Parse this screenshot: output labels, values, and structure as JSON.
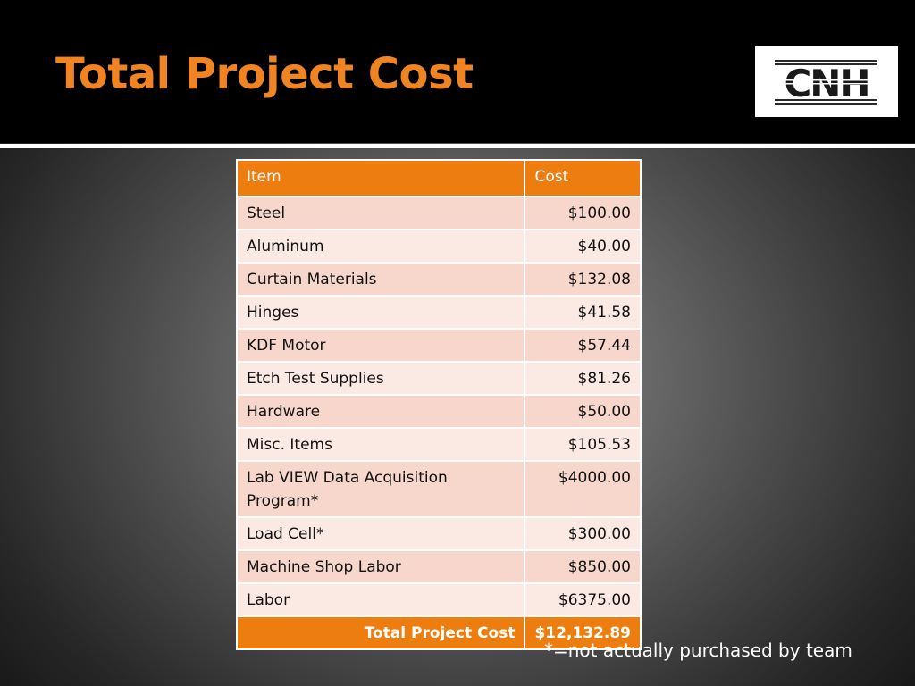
{
  "slide": {
    "title": "Total Project Cost",
    "logo_text": "CNH",
    "footnote": "*=not actually purchased by team"
  },
  "table": {
    "headers": [
      "Item",
      "Cost"
    ],
    "rows": [
      {
        "item": "Steel",
        "cost": "$100.00"
      },
      {
        "item": "Aluminum",
        "cost": "$40.00"
      },
      {
        "item": "Curtain Materials",
        "cost": "$132.08"
      },
      {
        "item": "Hinges",
        "cost": "$41.58"
      },
      {
        "item": "KDF Motor",
        "cost": "$57.44"
      },
      {
        "item": "Etch Test Supplies",
        "cost": "$81.26"
      },
      {
        "item": "Hardware",
        "cost": "$50.00"
      },
      {
        "item": "Misc. Items",
        "cost": "$105.53"
      },
      {
        "item": "Lab VIEW Data Acquisition Program*",
        "cost": "$4000.00"
      },
      {
        "item": "Load Cell*",
        "cost": "$300.00"
      },
      {
        "item": "Machine Shop Labor",
        "cost": "$850.00"
      },
      {
        "item": "Labor",
        "cost": "$6375.00"
      }
    ],
    "total_label": "Total Project Cost",
    "total_value": "$12,132.89"
  },
  "colors": {
    "accent_orange": "#ee7d10",
    "title_orange": "#f08423",
    "row_dark": "#f7d6cb",
    "row_light": "#fbe9e4"
  }
}
